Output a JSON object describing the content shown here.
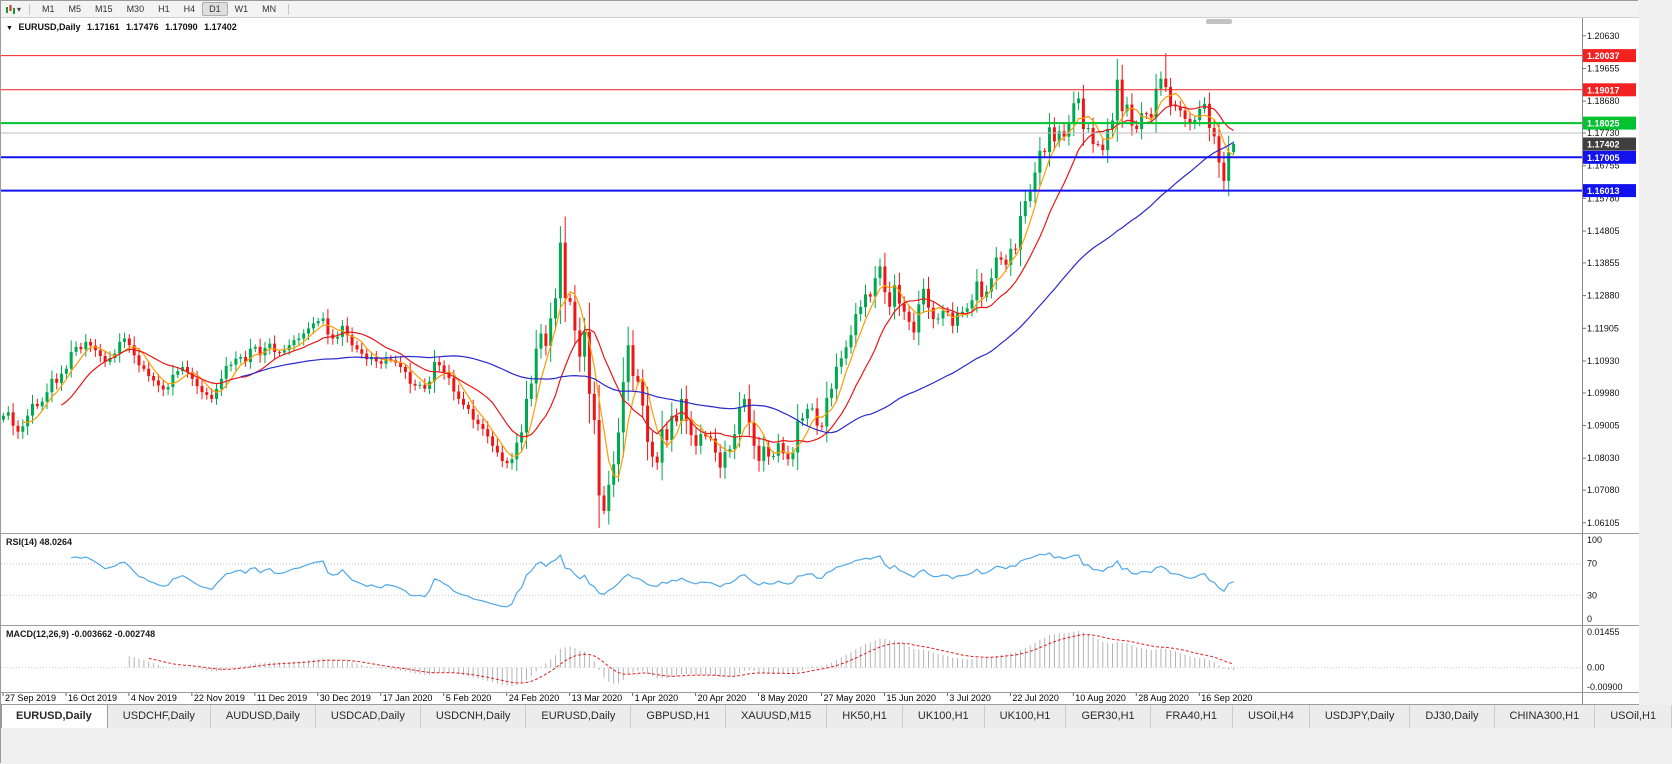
{
  "toolbar": {
    "timeframes": [
      "M1",
      "M5",
      "M15",
      "M30",
      "H1",
      "H4",
      "D1",
      "W1",
      "MN"
    ],
    "active_timeframe": "D1"
  },
  "title": {
    "symbol": "EURUSD,Daily",
    "open": "1.17161",
    "high": "1.17476",
    "low": "1.17090",
    "close": "1.17402"
  },
  "price_axis": {
    "labels": [
      "1.20630",
      "1.19655",
      "1.18680",
      "1.17730",
      "1.16755",
      "1.15780",
      "1.14805",
      "1.13855",
      "1.12880",
      "1.11905",
      "1.10930",
      "1.09980",
      "1.09005",
      "1.08030",
      "1.07080",
      "1.06105"
    ],
    "current_price": "1.17402",
    "current_price_color": "#3f3f3f"
  },
  "hlines": [
    {
      "price": 1.20037,
      "label": "1.20037",
      "color": "#f42121",
      "width": 1
    },
    {
      "price": 1.19017,
      "label": "1.19017",
      "color": "#f42121",
      "width": 1
    },
    {
      "price": 1.18025,
      "label": "1.18025",
      "color": "#00c32f",
      "width": 2
    },
    {
      "price": 1.1773,
      "label": null,
      "color": "#bdbdbd",
      "width": 1
    },
    {
      "price": 1.17005,
      "label": "1.17005",
      "color": "#1212ee",
      "width": 2
    },
    {
      "price": 1.16013,
      "label": "1.16013",
      "color": "#1212ee",
      "width": 2
    }
  ],
  "date_axis": {
    "bars_per_label": 13,
    "labels": [
      "27 Sep 2019",
      "16 Oct 2019",
      "4 Nov 2019",
      "22 Nov 2019",
      "11 Dec 2019",
      "30 Dec 2019",
      "17 Jan 2020",
      "5 Feb 2020",
      "24 Feb 2020",
      "13 Mar 2020",
      "1 Apr 2020",
      "20 Apr 2020",
      "8 May 2020",
      "27 May 2020",
      "15 Jun 2020",
      "3 Jul 2020",
      "22 Jul 2020",
      "10 Aug 2020",
      "28 Aug 2020",
      "16 Sep 2020"
    ]
  },
  "rsi": {
    "name": "RSI(14)",
    "value": "48.0264",
    "period": 14,
    "levels": [
      "100",
      "70",
      "30",
      "0"
    ],
    "level_lines": [
      70,
      30
    ],
    "line_color": "#4fa8e8"
  },
  "macd": {
    "name": "MACD(12,26,9)",
    "values": "-0.003662 -0.002748",
    "fast": 12,
    "slow": 26,
    "signal": 9,
    "axis_labels": {
      "top": "0.01455",
      "zero": "0.00",
      "bottom": "-0.00900"
    },
    "histogram_color": "#b4b4b4",
    "signal_color": "#e02020"
  },
  "tabs": {
    "active_index": 0,
    "items": [
      "EURUSD,Daily",
      "USDCHF,Daily",
      "AUDUSD,Daily",
      "USDCAD,Daily",
      "USDCNH,Daily",
      "EURUSD,Daily",
      "GBPUSD,H1",
      "XAUUSD,M15",
      "HK50,H1",
      "UK100,H1",
      "UK100,H1",
      "GER30,H1",
      "FRA40,H1",
      "USOil,H4",
      "USDJPY,Daily",
      "DJ30,Daily",
      "CHINA300,H1",
      "USOil,H1"
    ]
  },
  "chart_data": {
    "type": "candlestick",
    "symbol": "EURUSD",
    "timeframe": "Daily",
    "x_range": [
      "27 Sep 2019",
      "25 Sep 2020"
    ],
    "price_scale": {
      "top": 1.211,
      "bottom": 1.0583
    },
    "up_color": "#00a94f",
    "down_color": "#ef1515",
    "moving_averages": [
      {
        "period": 5,
        "color": "#ff9c00"
      },
      {
        "period": 13,
        "color": "#e81717"
      },
      {
        "period": 50,
        "color": "#2929cc"
      }
    ],
    "closes": [
      1.093,
      1.094,
      1.09,
      1.0882,
      1.0898,
      1.093,
      1.0965,
      1.0958,
      1.0972,
      1.1,
      1.104,
      1.1028,
      1.1055,
      1.107,
      1.112,
      1.1135,
      1.1128,
      1.115,
      1.1139,
      1.1125,
      1.1108,
      1.109,
      1.1102,
      1.1115,
      1.115,
      1.116,
      1.114,
      1.111,
      1.108,
      1.107,
      1.1048,
      1.1035,
      1.102,
      1.1008,
      1.1015,
      1.1052,
      1.1063,
      1.1075,
      1.106,
      1.104,
      1.1018,
      1.1,
      1.0992,
      1.098,
      1.101,
      1.104,
      1.1078,
      1.1082,
      1.11,
      1.1105,
      1.109,
      1.113,
      1.1135,
      1.111,
      1.1132,
      1.1145,
      1.112,
      1.1118,
      1.1125,
      1.114,
      1.1155,
      1.116,
      1.1175,
      1.119,
      1.1205,
      1.1212,
      1.122,
      1.1172,
      1.116,
      1.1165,
      1.1198,
      1.117,
      1.114,
      1.1128,
      1.1115,
      1.1098,
      1.1105,
      1.1092,
      1.1085,
      1.11,
      1.1095,
      1.1088,
      1.1075,
      1.106,
      1.1025,
      1.102,
      1.1022,
      1.101,
      1.1032,
      1.109,
      1.108,
      1.106,
      1.1042,
      1.1002,
      1.098,
      1.0962,
      1.095,
      1.0918,
      1.0905,
      1.089,
      1.0868,
      1.084,
      1.082,
      1.0795,
      1.0788,
      1.08,
      1.085,
      1.088,
      1.098,
      1.1026,
      1.113,
      1.1175,
      1.1138,
      1.122,
      1.128,
      1.1446,
      1.1281,
      1.127,
      1.1184,
      1.1106,
      1.118,
      1.0995,
      1.0917,
      1.0692,
      1.0646,
      1.0724,
      1.0785,
      1.088,
      1.103,
      1.114,
      1.1048,
      1.1032,
      1.096,
      1.0852,
      1.0808,
      1.079,
      1.089,
      1.0857,
      1.093,
      1.0913,
      1.098,
      1.0915,
      1.0872,
      1.084,
      1.0875,
      1.0868,
      1.0862,
      1.082,
      1.0775,
      1.0822,
      1.083,
      1.0875,
      1.0955,
      1.098,
      1.0908,
      1.084,
      1.0795,
      1.0838,
      1.0808,
      1.081,
      1.0848,
      1.0818,
      1.08,
      1.082,
      1.0915,
      1.0922,
      1.095,
      1.0952,
      1.09,
      1.0898,
      1.0983,
      1.101,
      1.1076,
      1.1101,
      1.1134,
      1.117,
      1.1233,
      1.1254,
      1.1292,
      1.1285,
      1.134,
      1.1375,
      1.1298,
      1.1255,
      1.132,
      1.1264,
      1.124,
      1.121,
      1.1178,
      1.1262,
      1.1308,
      1.1252,
      1.1218,
      1.122,
      1.1242,
      1.1238,
      1.1198,
      1.1235,
      1.124,
      1.125,
      1.1274,
      1.133,
      1.1284,
      1.13,
      1.134,
      1.1402,
      1.1395,
      1.138,
      1.1428,
      1.1425,
      1.1525,
      1.157,
      1.1598,
      1.1655,
      1.172,
      1.1716,
      1.179,
      1.1748,
      1.1778,
      1.1762,
      1.1802,
      1.1862,
      1.1876,
      1.1785,
      1.1788,
      1.174,
      1.1738,
      1.1722,
      1.1785,
      1.181,
      1.1932,
      1.1838,
      1.1858,
      1.1795,
      1.1785,
      1.1832,
      1.183,
      1.182,
      1.1905,
      1.1935,
      1.191,
      1.1855,
      1.1852,
      1.184,
      1.1815,
      1.18,
      1.1812,
      1.1845,
      1.186,
      1.1788,
      1.1763,
      1.1685,
      1.163,
      1.1716,
      1.174
    ],
    "extremes": [
      {
        "i": 115,
        "high": 1.1495
      },
      {
        "i": 124,
        "low": 1.0636
      },
      {
        "i": 240,
        "high": 1.2011
      },
      {
        "i": 252,
        "low": 1.1601
      },
      {
        "i": 254,
        "high": 1.17476,
        "low": 1.1709
      }
    ]
  }
}
